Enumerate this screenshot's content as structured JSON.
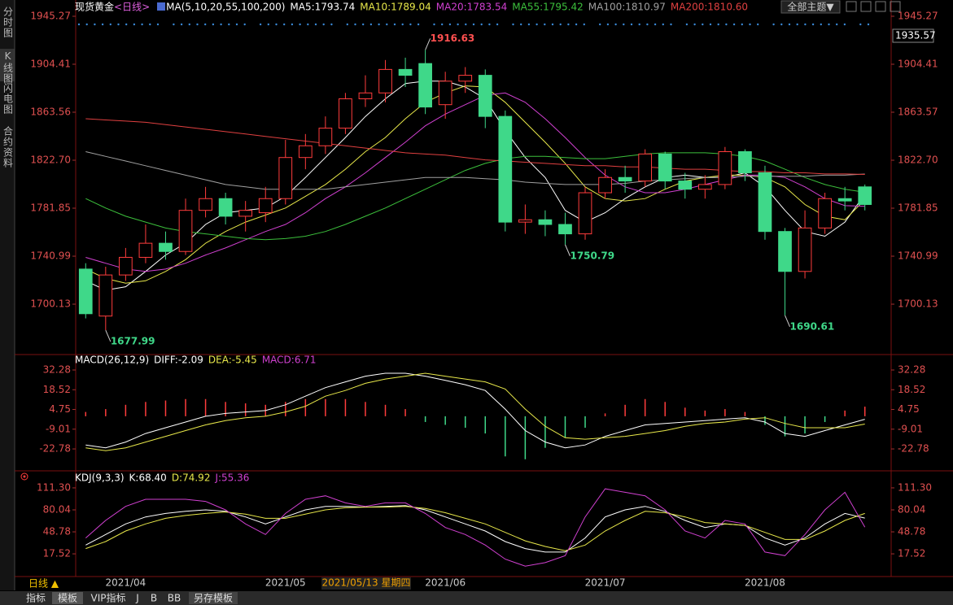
{
  "ui": {
    "side_tabs": [
      "分时图",
      "K线图",
      "闪电图",
      "合约资料"
    ],
    "theme_button": "全部主题▼",
    "period_button": "日线 ▲",
    "bottom_tabs": [
      "指标",
      "模板",
      "VIP指标",
      "J",
      "B",
      "BB",
      "另存模板"
    ]
  },
  "chart_data": [
    {
      "type": "candlestick",
      "title": "现货黄金",
      "subtitle": "<日线>",
      "indicator": "MA(5,10,20,55,100,200)",
      "categories": [
        null,
        null,
        "2021/04",
        null,
        null,
        null,
        null,
        null,
        null,
        null,
        "2021/05",
        null,
        null,
        null,
        null,
        null,
        null,
        null,
        "2021/06",
        null,
        null,
        null,
        null,
        null,
        null,
        null,
        "2021/07",
        null,
        null,
        null,
        null,
        null,
        null,
        null,
        "2021/08",
        null,
        null,
        null,
        null,
        null
      ],
      "cursor_label": "2021/05/13 星期四",
      "cursor_value": 1935.57,
      "open": [
        1730,
        1690,
        1725,
        1740,
        1752,
        1745,
        1780,
        1790,
        1775,
        1778,
        1790,
        1825,
        1835,
        1850,
        1875,
        1880,
        1900,
        1905,
        1870,
        1890,
        1895,
        1860,
        1770,
        1772,
        1768,
        1760,
        1795,
        1808,
        1805,
        1828,
        1805,
        1798,
        1802,
        1830,
        1812,
        1762,
        1728,
        1765,
        1790,
        1800
      ],
      "high": [
        1735,
        1732,
        1748,
        1768,
        1762,
        1790,
        1800,
        1795,
        1788,
        1800,
        1840,
        1845,
        1860,
        1880,
        1895,
        1908,
        1910,
        1916.63,
        1898,
        1902,
        1900,
        1865,
        1785,
        1780,
        1778,
        1800,
        1815,
        1818,
        1832,
        1830,
        1812,
        1810,
        1834,
        1832,
        1818,
        1765,
        1780,
        1795,
        1800,
        1802
      ],
      "low": [
        1688,
        1677.99,
        1720,
        1735,
        1738,
        1742,
        1774,
        1768,
        1762,
        1770,
        1785,
        1815,
        1828,
        1845,
        1868,
        1872,
        1885,
        1862,
        1858,
        1880,
        1850,
        1762,
        1760,
        1758,
        1750.79,
        1755,
        1790,
        1795,
        1800,
        1798,
        1790,
        1790,
        1798,
        1805,
        1755,
        1690.61,
        1722,
        1760,
        1780,
        1780
      ],
      "close": [
        1692,
        1725,
        1740,
        1752,
        1745,
        1780,
        1790,
        1775,
        1780,
        1790,
        1825,
        1835,
        1850,
        1875,
        1880,
        1900,
        1895,
        1868,
        1890,
        1895,
        1860,
        1770,
        1772,
        1768,
        1760,
        1795,
        1808,
        1805,
        1828,
        1805,
        1798,
        1802,
        1830,
        1812,
        1762,
        1728,
        1765,
        1790,
        1788,
        1785
      ],
      "up_color": "#ff3c3c",
      "down_color": "#3fd889",
      "annotations": [
        1916.63,
        1750.79,
        1677.99,
        1690.61
      ],
      "series": [
        {
          "name": "MA5:1793.74",
          "color": "#ffffff",
          "values": [
            1720,
            1712,
            1715,
            1728,
            1742,
            1752,
            1768,
            1778,
            1780,
            1782,
            1792,
            1808,
            1825,
            1842,
            1860,
            1875,
            1888,
            1890,
            1890,
            1885,
            1875,
            1848,
            1825,
            1808,
            1780,
            1770,
            1778,
            1790,
            1800,
            1808,
            1810,
            1808,
            1808,
            1812,
            1800,
            1780,
            1762,
            1758,
            1770,
            1793.74
          ]
        },
        {
          "name": "MA10:1789.04",
          "color": "#e8e84a",
          "values": [
            1730,
            1722,
            1718,
            1720,
            1728,
            1738,
            1752,
            1762,
            1770,
            1776,
            1782,
            1792,
            1802,
            1815,
            1830,
            1842,
            1858,
            1872,
            1880,
            1886,
            1885,
            1872,
            1855,
            1838,
            1820,
            1800,
            1790,
            1788,
            1790,
            1798,
            1805,
            1808,
            1810,
            1810,
            1808,
            1800,
            1785,
            1775,
            1772,
            1789.04
          ]
        },
        {
          "name": "MA20:1783.54",
          "color": "#d040d0",
          "values": [
            1740,
            1735,
            1730,
            1728,
            1730,
            1735,
            1742,
            1748,
            1755,
            1762,
            1768,
            1778,
            1790,
            1800,
            1812,
            1825,
            1838,
            1852,
            1862,
            1870,
            1878,
            1880,
            1872,
            1858,
            1842,
            1825,
            1810,
            1800,
            1795,
            1795,
            1798,
            1802,
            1806,
            1810,
            1810,
            1808,
            1800,
            1790,
            1784,
            1783.54
          ]
        },
        {
          "name": "MA55:1795.42",
          "color": "#3cc03c",
          "values": [
            1790,
            1782,
            1775,
            1770,
            1765,
            1762,
            1760,
            1758,
            1756,
            1755,
            1756,
            1758,
            1762,
            1768,
            1775,
            1782,
            1790,
            1798,
            1806,
            1814,
            1820,
            1824,
            1826,
            1826,
            1825,
            1824,
            1824,
            1826,
            1828,
            1829,
            1829,
            1829,
            1828,
            1826,
            1822,
            1815,
            1808,
            1802,
            1798,
            1795.42
          ]
        },
        {
          "name": "MA100:1810.97",
          "color": "#a0a0a0",
          "values": [
            1830,
            1826,
            1822,
            1818,
            1814,
            1810,
            1806,
            1802,
            1800,
            1798,
            1798,
            1798,
            1798,
            1800,
            1802,
            1804,
            1806,
            1808,
            1808,
            1808,
            1807,
            1806,
            1804,
            1803,
            1802,
            1802,
            1802,
            1803,
            1805,
            1806,
            1807,
            1808,
            1808,
            1809,
            1809,
            1809,
            1809,
            1810,
            1810,
            1810.97
          ]
        },
        {
          "name": "MA200:1810.60",
          "color": "#e04040",
          "values": [
            1858,
            1857,
            1856,
            1855,
            1853,
            1851,
            1849,
            1847,
            1845,
            1843,
            1841,
            1839,
            1837,
            1835,
            1833,
            1831,
            1829,
            1828,
            1827,
            1825,
            1823,
            1822,
            1821,
            1820,
            1819,
            1818,
            1818,
            1817,
            1817,
            1816,
            1815,
            1815,
            1814,
            1813,
            1813,
            1812,
            1812,
            1811,
            1811,
            1810.6
          ]
        }
      ],
      "ylim": [
        1660,
        1945.27
      ],
      "yticks": [
        1945.27,
        1904.41,
        1863.56,
        {
          "value": 1822.7,
          "label": "1822.70"
        },
        1781.85,
        1740.99,
        1700.13
      ],
      "y2lim": [
        1660,
        1945.27
      ],
      "y2ticks": [
        1945.27,
        1904.41,
        1863.57,
        {
          "value": 1822.7,
          "label": "1822.70"
        },
        1781.85,
        1740.99,
        1700.13
      ],
      "grid": false
    },
    {
      "type": "macd",
      "title": "MACD(26,12,9)",
      "series": [
        {
          "name": "DIFF:-2.09",
          "color": "#ffffff",
          "values": [
            -20,
            -22,
            -18,
            -12,
            -8,
            -4,
            0,
            2,
            3,
            4,
            8,
            14,
            20,
            24,
            28,
            30,
            30,
            28,
            25,
            22,
            18,
            5,
            -10,
            -18,
            -22,
            -20,
            -14,
            -10,
            -6,
            -5,
            -4,
            -3,
            -2,
            -1,
            -4,
            -12,
            -14,
            -10,
            -6,
            -2.09
          ]
        },
        {
          "name": "DEA:-5.45",
          "color": "#e8e84a",
          "values": [
            -22,
            -24,
            -22,
            -18,
            -14,
            -10,
            -6,
            -3,
            -1,
            0,
            3,
            7,
            14,
            18,
            23,
            26,
            28,
            30,
            28,
            26,
            24,
            19,
            5,
            -7,
            -15,
            -16,
            -15,
            -14,
            -12,
            -10,
            -7,
            -5,
            -4,
            -2,
            -1,
            -5,
            -8,
            -8,
            -8,
            -5.45
          ]
        }
      ],
      "bars": {
        "name": "MACD:6.71",
        "color": "#d040d0",
        "up_color": "#ff3c3c",
        "down_color": "#3fd889",
        "values": [
          3,
          5,
          8,
          10,
          11,
          12,
          12,
          10,
          9,
          8,
          10,
          12,
          12,
          12,
          10,
          8,
          5,
          -4,
          -6,
          -8,
          -12,
          -28,
          -30,
          -22,
          -15,
          -8,
          2,
          8,
          12,
          10,
          6,
          4,
          5,
          3,
          -6,
          -14,
          -12,
          -4,
          4,
          6.71
        ]
      },
      "ylim": [
        -37.5,
        42.5
      ],
      "yticks": [
        32.28,
        18.52,
        4.75,
        -9.01,
        -22.78
      ],
      "y2lim": [
        -37.5,
        42.5
      ],
      "y2ticks": [
        32.28,
        18.52,
        4.75,
        -9.01,
        -22.78
      ]
    },
    {
      "type": "line",
      "title": "KDJ(9,3,3)",
      "series": [
        {
          "name": "K:68.40",
          "color": "#ffffff",
          "values": [
            30,
            45,
            60,
            70,
            75,
            78,
            80,
            78,
            70,
            60,
            70,
            80,
            85,
            85,
            84,
            85,
            86,
            80,
            70,
            60,
            50,
            35,
            25,
            20,
            20,
            40,
            70,
            80,
            85,
            78,
            65,
            55,
            60,
            58,
            40,
            30,
            40,
            60,
            75,
            68.4
          ]
        },
        {
          "name": "D:74.92",
          "color": "#e8e84a",
          "values": [
            25,
            35,
            50,
            60,
            68,
            72,
            75,
            77,
            74,
            68,
            68,
            74,
            80,
            83,
            84,
            84,
            85,
            82,
            76,
            68,
            60,
            48,
            36,
            28,
            22,
            30,
            50,
            65,
            78,
            76,
            70,
            62,
            60,
            58,
            48,
            38,
            38,
            50,
            65,
            74.92
          ]
        },
        {
          "name": "J:55.36",
          "color": "#d040d0",
          "values": [
            40,
            65,
            85,
            95,
            95,
            95,
            92,
            80,
            60,
            45,
            75,
            95,
            100,
            90,
            85,
            90,
            90,
            75,
            55,
            45,
            30,
            10,
            0,
            5,
            15,
            70,
            110,
            105,
            100,
            80,
            50,
            40,
            65,
            60,
            20,
            15,
            45,
            80,
            105,
            55.36
          ]
        }
      ],
      "ylim": [
        -13.6,
        133.2
      ],
      "yticks": [
        {
          "value": 111.3,
          "label": "111.30"
        },
        80.04,
        48.78,
        17.52
      ],
      "y2lim": [
        -13.6,
        133.2
      ],
      "y2ticks": [
        {
          "value": 111.3,
          "label": "111.30"
        },
        80.04,
        48.78,
        17.52
      ]
    }
  ]
}
